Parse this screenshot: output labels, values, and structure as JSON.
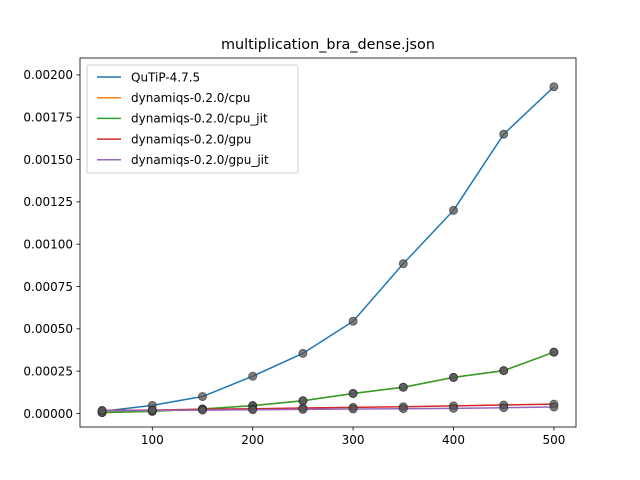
{
  "chart_data": {
    "type": "line",
    "title": "multiplication_bra_dense.json",
    "xlabel": "",
    "ylabel": "",
    "x": [
      50,
      100,
      150,
      200,
      250,
      300,
      350,
      400,
      450,
      500
    ],
    "xlim": [
      28,
      522
    ],
    "ylim": [
      -8e-05,
      0.0021
    ],
    "xticks": [
      100,
      200,
      300,
      400,
      500
    ],
    "xtick_labels": [
      "100",
      "200",
      "300",
      "400",
      "500"
    ],
    "yticks": [
      0,
      0.00025,
      0.0005,
      0.00075,
      0.001,
      0.00125,
      0.0015,
      0.00175,
      0.002
    ],
    "ytick_labels": [
      "0.00000",
      "0.00025",
      "0.00050",
      "0.00075",
      "0.00100",
      "0.00125",
      "0.00150",
      "0.00175",
      "0.00200"
    ],
    "grid": false,
    "legend_position": "top-left",
    "marker_color": "#555555",
    "series": [
      {
        "name": "QuTiP-4.7.5",
        "color": "#1f77b4",
        "values": [
          1.2e-05,
          4.8e-05,
          0.0001,
          0.00022,
          0.000355,
          0.000545,
          0.000885,
          0.0012,
          0.00165,
          0.00193
        ]
      },
      {
        "name": "dynamiqs-0.2.0/cpu",
        "color": "#ff7f0e",
        "values": [
          5e-06,
          1.3e-05,
          2.6e-05,
          4.6e-05,
          7.5e-05,
          0.000118,
          0.000155,
          0.000213,
          0.000253,
          0.000362
        ]
      },
      {
        "name": "dynamiqs-0.2.0/cpu_jit",
        "color": "#2ca02c",
        "values": [
          5e-06,
          1.3e-05,
          2.6e-05,
          4.6e-05,
          7.5e-05,
          0.000118,
          0.000155,
          0.000213,
          0.000253,
          0.000362
        ]
      },
      {
        "name": "dynamiqs-0.2.0/gpu",
        "color": "#d62728",
        "values": [
          1.8e-05,
          2e-05,
          2.5e-05,
          2.8e-05,
          3.2e-05,
          3.6e-05,
          4e-05,
          4.5e-05,
          5e-05,
          5.5e-05
        ]
      },
      {
        "name": "dynamiqs-0.2.0/gpu_jit",
        "color": "#9467bd",
        "values": [
          1.6e-05,
          1.8e-05,
          2e-05,
          2.2e-05,
          2.4e-05,
          2.6e-05,
          2.8e-05,
          3e-05,
          3.4e-05,
          3.8e-05
        ]
      }
    ]
  }
}
